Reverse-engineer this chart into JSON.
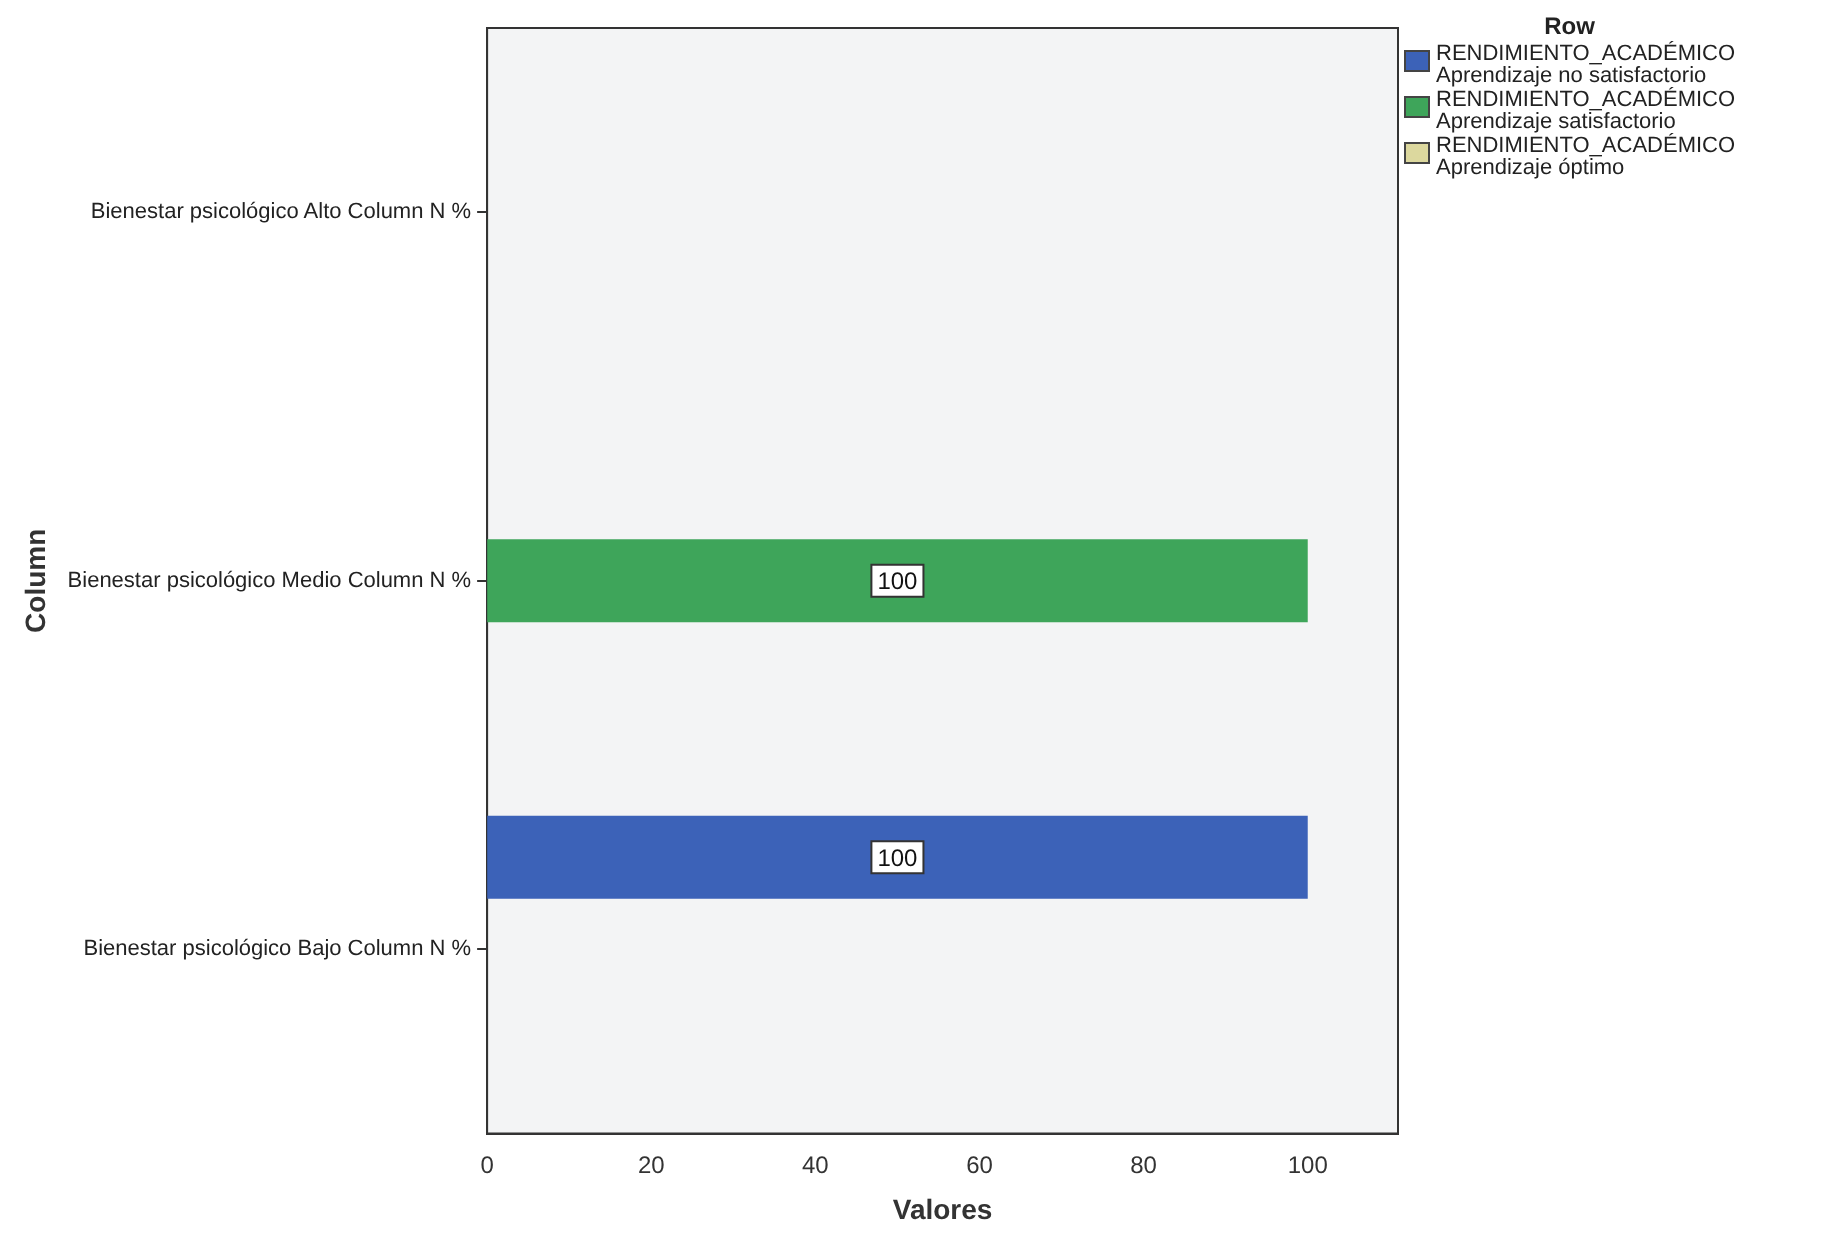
{
  "chart_data": {
    "type": "bar",
    "orientation": "horizontal",
    "categories": [
      "Bienestar psicológico Alto Column N %",
      "Bienestar psicológico Medio Column N %",
      "Bienestar psicológico Bajo Column N %"
    ],
    "series": [
      {
        "name": "RENDIMIENTO_ACADÉMICO\nAprendizaje no satisfactorio",
        "color": "#3c62b8",
        "values": [
          null,
          null,
          100
        ]
      },
      {
        "name": "RENDIMIENTO_ACADÉMICO\nAprendizaje satisfactorio",
        "color": "#3ea55a",
        "values": [
          null,
          100,
          null
        ]
      },
      {
        "name": "RENDIMIENTO_ACADÉMICO\nAprendizaje óptimo",
        "color": "#dcd89e",
        "values": [
          null,
          null,
          null
        ]
      }
    ],
    "xlim": [
      0,
      111
    ],
    "xticks": [
      0,
      20,
      40,
      60,
      80,
      100
    ],
    "xlabel": "Valores",
    "ylabel": "Column",
    "legend_title": "Row",
    "legend": "top right",
    "grid": false,
    "data_labels": true
  }
}
